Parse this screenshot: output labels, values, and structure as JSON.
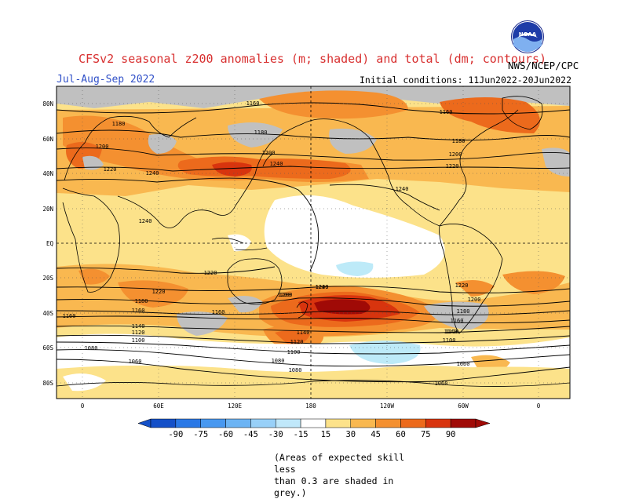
{
  "title": "CFSv2 seasonal z200 anomalies (m; shaded) and total (dm; contours)",
  "period": "Jul-Aug-Sep 2022",
  "initial_conditions": "Initial conditions: 11Jun2022-20Jun2022",
  "agency": "NWS/NCEP/CPC",
  "logo_text": "NOAA",
  "caption_line1": "(Areas of expected skill less",
  "caption_line2": "than 0.3 are shaded in grey.)",
  "lat_labels": [
    "80N",
    "60N",
    "40N",
    "20N",
    "EQ",
    "20S",
    "40S",
    "60S",
    "80S"
  ],
  "lon_labels": [
    "0",
    "60E",
    "120E",
    "180",
    "120W",
    "60W",
    "0"
  ],
  "colorbar": {
    "labels": [
      "-90",
      "-75",
      "-60",
      "-45",
      "-30",
      "-15",
      "15",
      "30",
      "45",
      "60",
      "75",
      "90"
    ],
    "colors": [
      "#1450c8",
      "#2a78e6",
      "#4898f0",
      "#6cb4f4",
      "#98d0f8",
      "#c0e8fa",
      "#ffffff",
      "#fce28a",
      "#f9b850",
      "#f49030",
      "#ec6a1c",
      "#d8340e",
      "#a00a06"
    ]
  },
  "contour_labels": [
    "1160",
    "1180",
    "1200",
    "1220",
    "1240",
    "1240",
    "1180",
    "1160",
    "1180",
    "1200",
    "1220",
    "1200",
    "1240",
    "1240",
    "1220",
    "1220",
    "1240",
    "1220",
    "1200",
    "1180",
    "1160",
    "1160",
    "1200",
    "1180",
    "1160",
    "1140",
    "1120",
    "1100",
    "1200",
    "1220",
    "1140",
    "1120",
    "1100",
    "1080",
    "1060",
    "1080",
    "1160",
    "1140",
    "1120",
    "1100",
    "1080",
    "1060",
    "1060"
  ],
  "color_scale": {
    "cool": "#bdeaf8",
    "light": "#fce28a",
    "mid": "#f9b850",
    "orange": "#f49030",
    "deep": "#ec6a1c",
    "red": "#d8340e",
    "dark": "#a00a06",
    "grey": "#c0c0c0"
  }
}
